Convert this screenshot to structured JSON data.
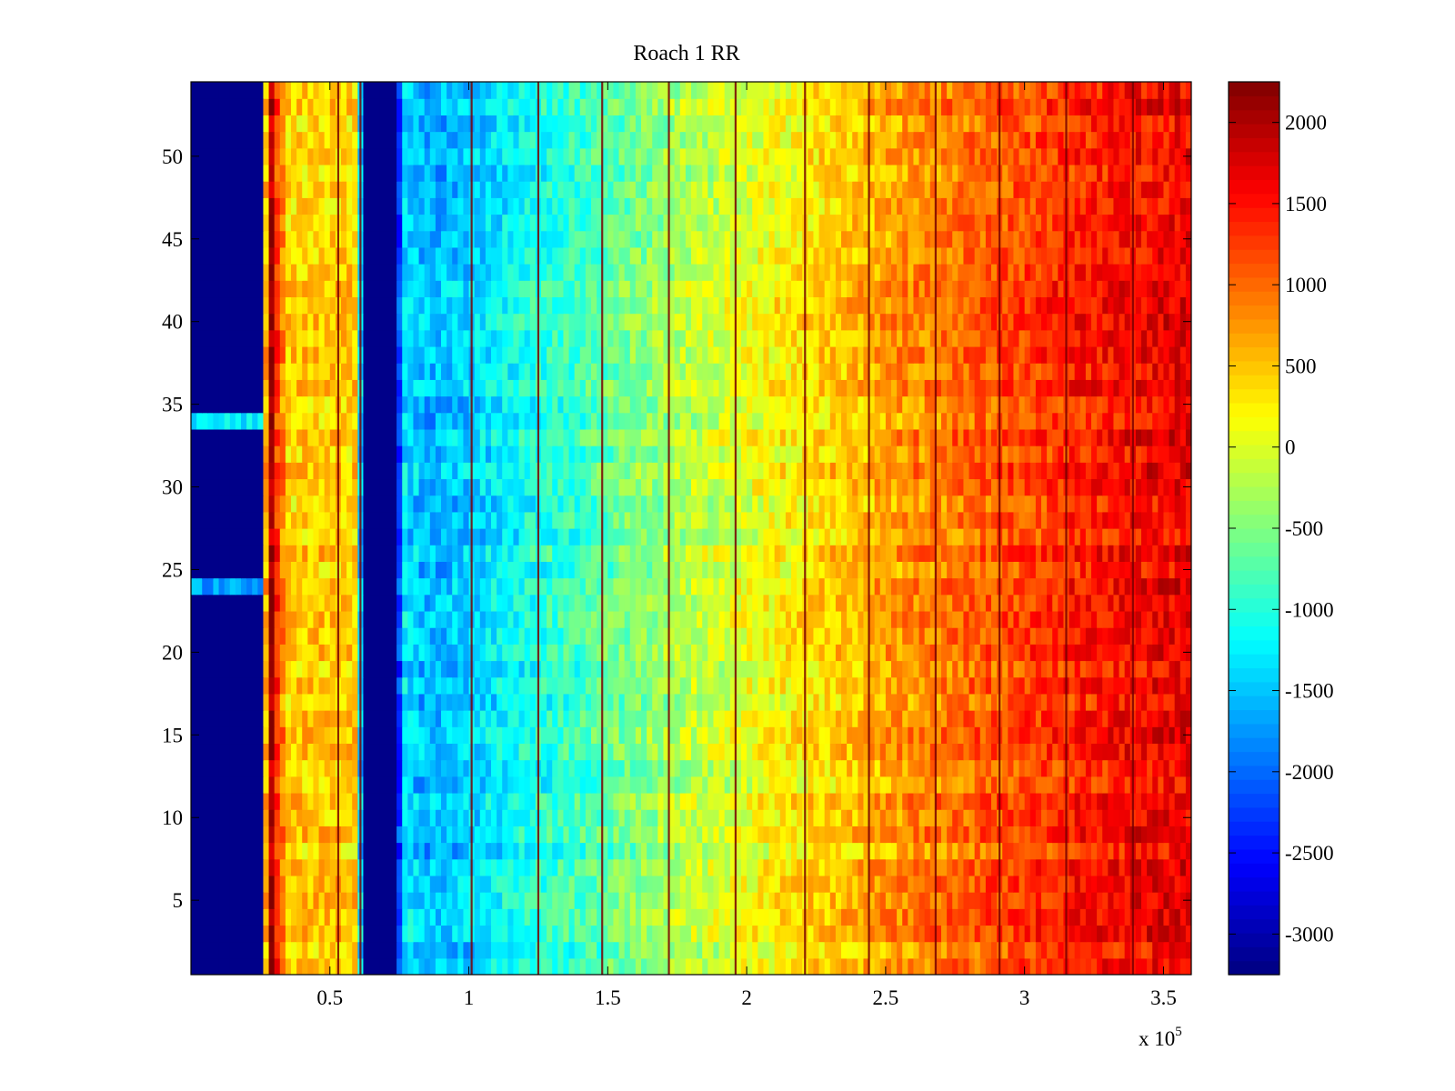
{
  "chart_data": {
    "type": "heatmap",
    "title": "Roach 1 RR",
    "xlabel": "",
    "ylabel": "",
    "x_multiplier_label": "x 10",
    "x_multiplier_exponent": "5",
    "xlim": [
      0,
      3.6
    ],
    "ylim": [
      0.5,
      54.5
    ],
    "x_ticks": [
      0.5,
      1,
      1.5,
      2,
      2.5,
      3,
      3.5
    ],
    "x_tick_labels": [
      "0.5",
      "1",
      "1.5",
      "2",
      "2.5",
      "3",
      "3.5"
    ],
    "y_ticks": [
      5,
      10,
      15,
      20,
      25,
      30,
      35,
      40,
      45,
      50
    ],
    "y_tick_labels": [
      "5",
      "10",
      "15",
      "20",
      "25",
      "30",
      "35",
      "40",
      "45",
      "50"
    ],
    "rows": 54,
    "colormap": "jet",
    "colorbar": {
      "clim": [
        -3250,
        2250
      ],
      "ticks": [
        2000,
        1500,
        1000,
        500,
        0,
        -500,
        -1000,
        -1500,
        -2000,
        -2500,
        -3000
      ],
      "tick_labels": [
        "2000",
        "1500",
        "1000",
        "500",
        "0",
        "-500",
        "-1000",
        "-1500",
        "-2000",
        "-2500",
        "-3000"
      ],
      "placement": "right"
    },
    "column_profile": {
      "x": [
        0.0,
        0.26,
        0.27,
        0.29,
        0.31,
        0.35,
        0.4,
        0.5,
        0.6,
        0.62,
        0.74,
        0.76,
        0.85,
        1.0,
        1.2,
        1.4,
        1.6,
        1.8,
        2.0,
        2.2,
        2.4,
        2.6,
        2.8,
        3.0,
        3.2,
        3.4,
        3.6
      ],
      "values": [
        -3200,
        -3200,
        600,
        2100,
        1300,
        400,
        450,
        450,
        400,
        -3200,
        -3200,
        -1300,
        -1600,
        -1450,
        -1100,
        -850,
        -500,
        -200,
        50,
        300,
        550,
        800,
        1000,
        1200,
        1400,
        1550,
        1650
      ]
    },
    "dark_columns_x": [
      0.53,
      0.61,
      1.01,
      1.25,
      1.48,
      1.72,
      1.96,
      2.21,
      2.44,
      2.68,
      2.91,
      3.15,
      3.39
    ],
    "highlight_rows": [
      {
        "rows": [
          34
        ],
        "x_range": [
          0,
          0.26
        ],
        "value": -1300
      },
      {
        "rows": [
          24
        ],
        "x_range": [
          0,
          0.26
        ],
        "value": -1700
      }
    ]
  }
}
